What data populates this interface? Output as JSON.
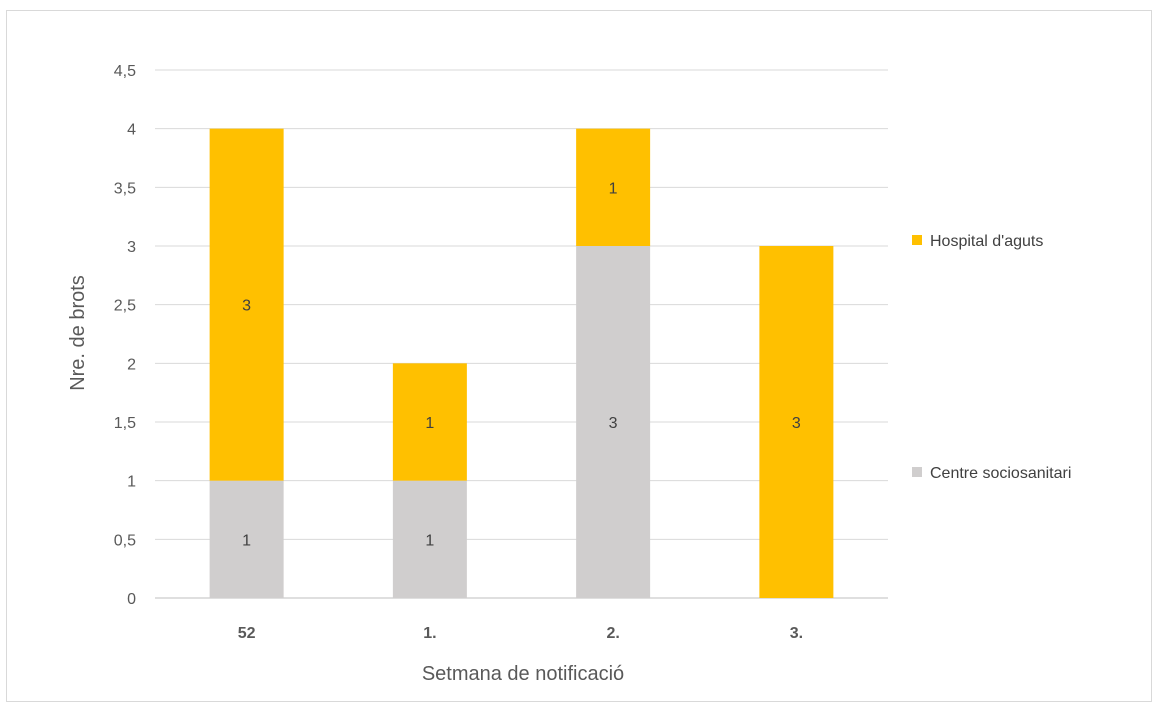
{
  "chart_data": {
    "type": "bar",
    "stacked": true,
    "categories": [
      "52",
      "1.",
      "2.",
      "3."
    ],
    "series": [
      {
        "name": "Centre sociosanitari",
        "values": [
          1,
          1,
          3,
          0
        ],
        "color": "#d0cece"
      },
      {
        "name": "Hospital d'aguts",
        "values": [
          3,
          1,
          1,
          3
        ],
        "color": "#ffc000"
      }
    ],
    "data_labels": [
      [
        "1",
        "1",
        "3",
        ""
      ],
      [
        "3",
        "1",
        "1",
        "3"
      ]
    ],
    "xlabel": "Setmana de notificació",
    "ylabel": "Nre. de brots",
    "ylim": [
      0,
      4.5
    ],
    "yticks": [
      "0",
      "0,5",
      "1",
      "1,5",
      "2",
      "2,5",
      "3",
      "3,5",
      "4",
      "4,5"
    ],
    "grid": true,
    "legend_position": "right",
    "legend_order": [
      "Hospital d'aguts",
      "Centre sociosanitari"
    ]
  }
}
